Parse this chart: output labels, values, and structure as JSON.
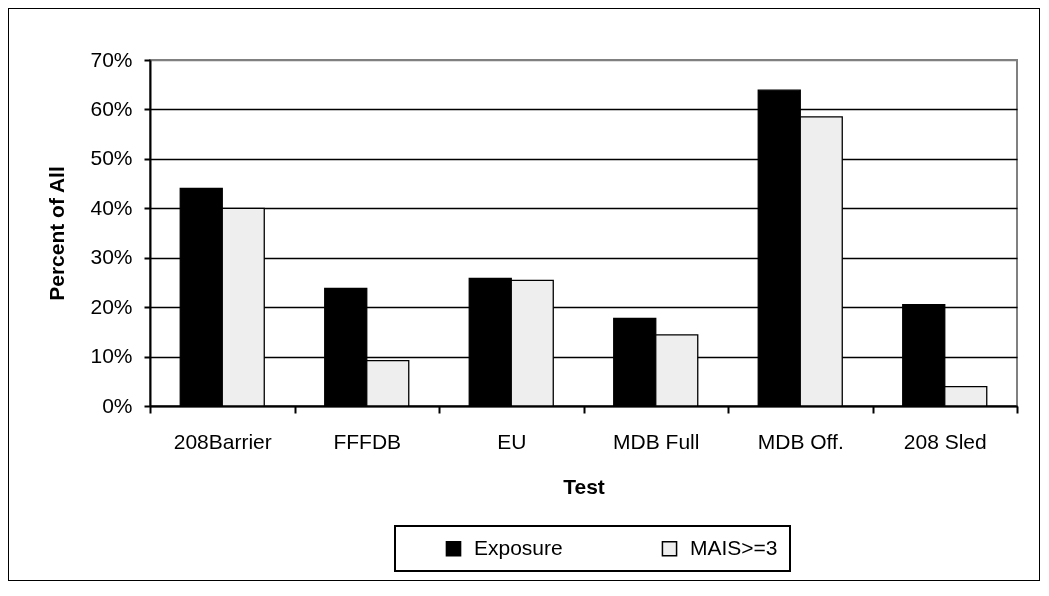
{
  "chart_data": {
    "type": "bar",
    "xlabel": "Test",
    "ylabel": "Percent of All",
    "categories": [
      "208Barrier",
      "FFFDB",
      "EU",
      "MDB Full",
      "MDB Off.",
      "208 Sled"
    ],
    "series": [
      {
        "name": "Exposure",
        "color": "#000000",
        "values": [
          44,
          23.8,
          25.8,
          17.7,
          63.9,
          20.5
        ]
      },
      {
        "name": "MAIS>=3",
        "color": "#eeeeee",
        "values": [
          40,
          9.2,
          25.4,
          14.4,
          58.5,
          3.9
        ]
      }
    ],
    "ylim": [
      0,
      70
    ],
    "yticks": [
      {
        "value": 0,
        "label": "0%"
      },
      {
        "value": 10,
        "label": "10%"
      },
      {
        "value": 20,
        "label": "20%"
      },
      {
        "value": 30,
        "label": "30%"
      },
      {
        "value": 40,
        "label": "40%"
      },
      {
        "value": 50,
        "label": "50%"
      },
      {
        "value": 60,
        "label": "60%"
      },
      {
        "value": 70,
        "label": "70%"
      }
    ],
    "grid": "y",
    "legend": "bottom"
  }
}
